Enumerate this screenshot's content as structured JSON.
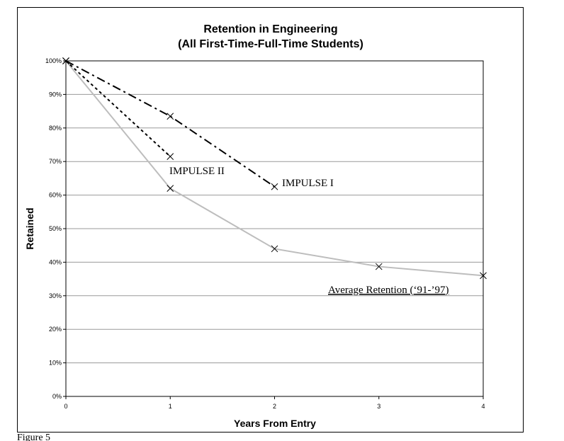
{
  "chart_data": {
    "type": "line",
    "title": "Retention in Engineering",
    "subtitle": "(All First-Time-Full-Time Students)",
    "xlabel": "Years From Entry",
    "ylabel": "Retained",
    "xlim": [
      0,
      4
    ],
    "ylim": [
      0,
      100
    ],
    "x_ticks": [
      "0",
      "1",
      "2",
      "3",
      "4"
    ],
    "y_ticks": [
      "0%",
      "10%",
      "20%",
      "30%",
      "40%",
      "50%",
      "60%",
      "70%",
      "80%",
      "90%",
      "100%"
    ],
    "grid": true,
    "series": [
      {
        "name": "IMPULSE I",
        "x": [
          0,
          1,
          2
        ],
        "y": [
          100,
          83.5,
          62.5
        ],
        "color": "#000000",
        "style": "dash-dot"
      },
      {
        "name": "IMPULSE II",
        "x": [
          0,
          1
        ],
        "y": [
          100,
          71.5
        ],
        "color": "#000000",
        "style": "dotted"
      },
      {
        "name": "Average Retention (‘91-’97)",
        "x": [
          0,
          1,
          2,
          3,
          4
        ],
        "y": [
          100,
          62,
          44,
          38.7,
          36
        ],
        "color": "#bdbdbd",
        "style": "solid"
      }
    ]
  },
  "caption": "Figure 5"
}
